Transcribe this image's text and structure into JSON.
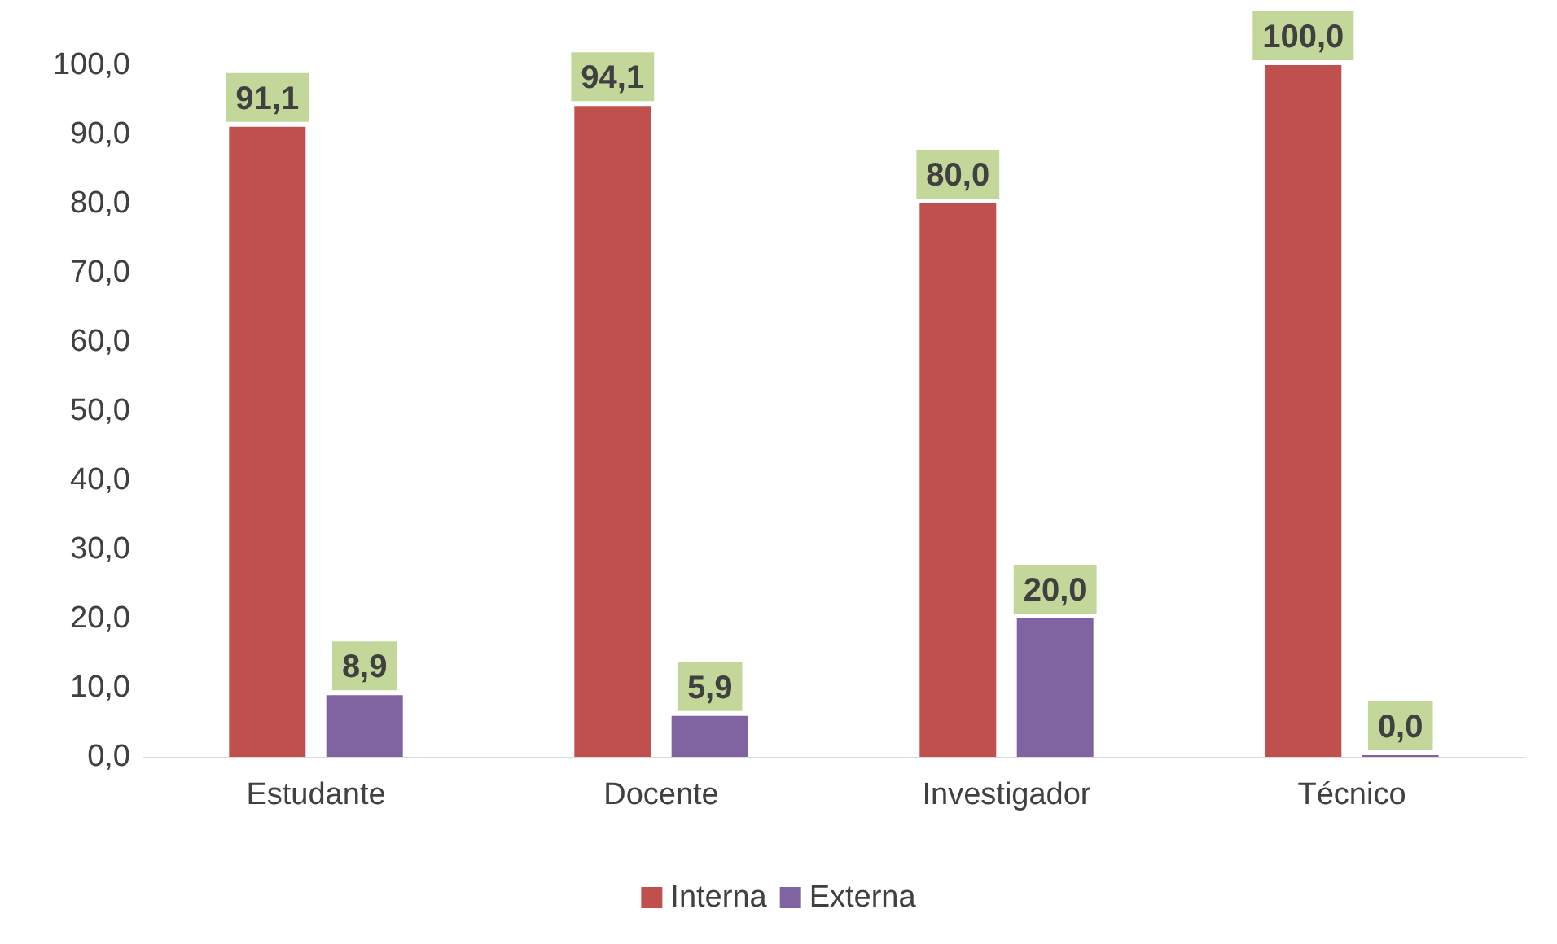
{
  "chart_data": {
    "type": "bar",
    "categories": [
      "Estudante",
      "Docente",
      "Investigador",
      "Técnico"
    ],
    "series": [
      {
        "name": "Interna",
        "color": "#c0504d",
        "values": [
          91.1,
          94.1,
          80.0,
          100.0
        ],
        "value_labels": [
          "91,1",
          "94,1",
          "80,0",
          "100,0"
        ]
      },
      {
        "name": "Externa",
        "color": "#8064a2",
        "values": [
          8.9,
          5.9,
          20.0,
          0.0
        ],
        "value_labels": [
          "8,9",
          "5,9",
          "20,0",
          "0,0"
        ]
      }
    ],
    "ylim": [
      0,
      100
    ],
    "yticks": [
      {
        "value": 0,
        "label": "0,0"
      },
      {
        "value": 10,
        "label": "10,0"
      },
      {
        "value": 20,
        "label": "20,0"
      },
      {
        "value": 30,
        "label": "30,0"
      },
      {
        "value": 40,
        "label": "40,0"
      },
      {
        "value": 50,
        "label": "50,0"
      },
      {
        "value": 60,
        "label": "60,0"
      },
      {
        "value": 70,
        "label": "70,0"
      },
      {
        "value": 80,
        "label": "80,0"
      },
      {
        "value": 90,
        "label": "90,0"
      },
      {
        "value": 100,
        "label": "100,0"
      }
    ],
    "grid": false,
    "legend": "bottom"
  }
}
